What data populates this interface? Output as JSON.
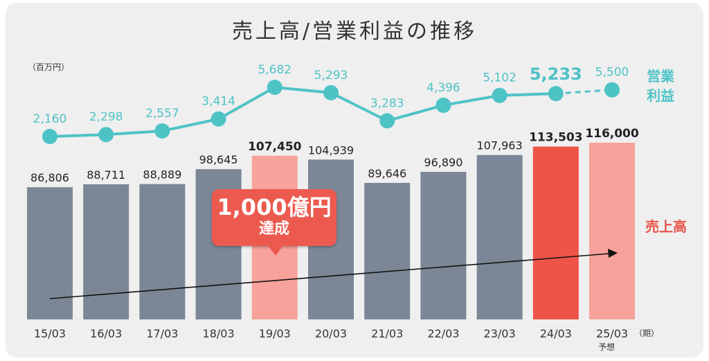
{
  "chart_data": {
    "type": "bar+line",
    "title": "売上高/営業利益の推移",
    "unit_label": "（百万円）",
    "categories": [
      "15/03",
      "16/03",
      "17/03",
      "18/03",
      "19/03",
      "20/03",
      "21/03",
      "22/03",
      "23/03",
      "24/03",
      "25/03"
    ],
    "category_suffix": "（期）",
    "forecast_label": "予想",
    "series": [
      {
        "name": "売上高",
        "type": "bar",
        "values": [
          86806,
          88711,
          88889,
          98645,
          107450,
          104939,
          89646,
          96890,
          107963,
          113503,
          116000
        ],
        "labels": [
          "86,806",
          "88,711",
          "88,889",
          "98,645",
          "107,450",
          "104,939",
          "89,646",
          "96,890",
          "107,963",
          "113,503",
          "116,000"
        ],
        "colors": [
          "#7b8796",
          "#7b8796",
          "#7b8796",
          "#7b8796",
          "#f7a29a",
          "#7b8796",
          "#7b8796",
          "#7b8796",
          "#7b8796",
          "#ef5449",
          "#f7a29a"
        ]
      },
      {
        "name": "営業利益",
        "name_lines": [
          "営業",
          "利益"
        ],
        "type": "line",
        "values": [
          2160,
          2298,
          2557,
          3414,
          5682,
          5293,
          3283,
          4396,
          5102,
          5233,
          5500
        ],
        "labels": [
          "2,160",
          "2,298",
          "2,557",
          "3,414",
          "5,682",
          "5,293",
          "3,283",
          "4,396",
          "5,102",
          "5,233",
          "5,500"
        ],
        "color": "#4ec3c6"
      }
    ],
    "callout": {
      "line1": "1,000億円",
      "line2": "達成",
      "color": "#ec5a4f"
    },
    "trend_arrow": true,
    "colors": {
      "bar": "#7b8796",
      "highlight": "#ef5449",
      "highlight_light": "#f7a29a",
      "line": "#4ec3c6",
      "sales_legend": "#e8534a"
    }
  }
}
